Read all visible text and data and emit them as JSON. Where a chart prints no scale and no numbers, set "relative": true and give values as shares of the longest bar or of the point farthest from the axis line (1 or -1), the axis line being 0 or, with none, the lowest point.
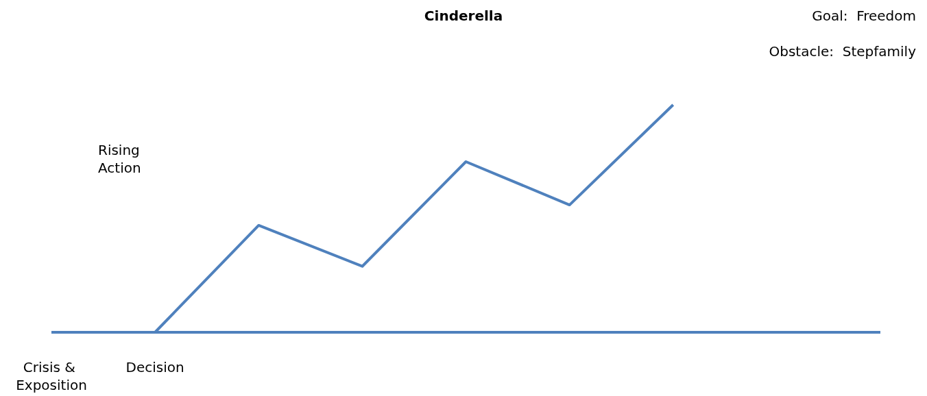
{
  "chart_data": {
    "type": "line",
    "title": "Cinderella",
    "categories": [
      "Crisis & Exposition",
      "Decision",
      null,
      null,
      null,
      null,
      null,
      null,
      null
    ],
    "series": [
      {
        "color": "#4f81bd",
        "values": [
          0,
          0,
          0,
          0,
          0,
          0,
          0,
          0,
          0
        ]
      },
      {
        "color": "#4f81bd",
        "values": [
          null,
          0,
          0.47,
          0.29,
          0.75,
          0.56,
          1,
          null,
          null
        ]
      }
    ],
    "relative": true,
    "marker": "none",
    "line_style": "solid",
    "grid": false,
    "annotations": [
      "Goal:  Freedom",
      "Obstacle:  Stepfamily",
      "Rising Action"
    ]
  }
}
